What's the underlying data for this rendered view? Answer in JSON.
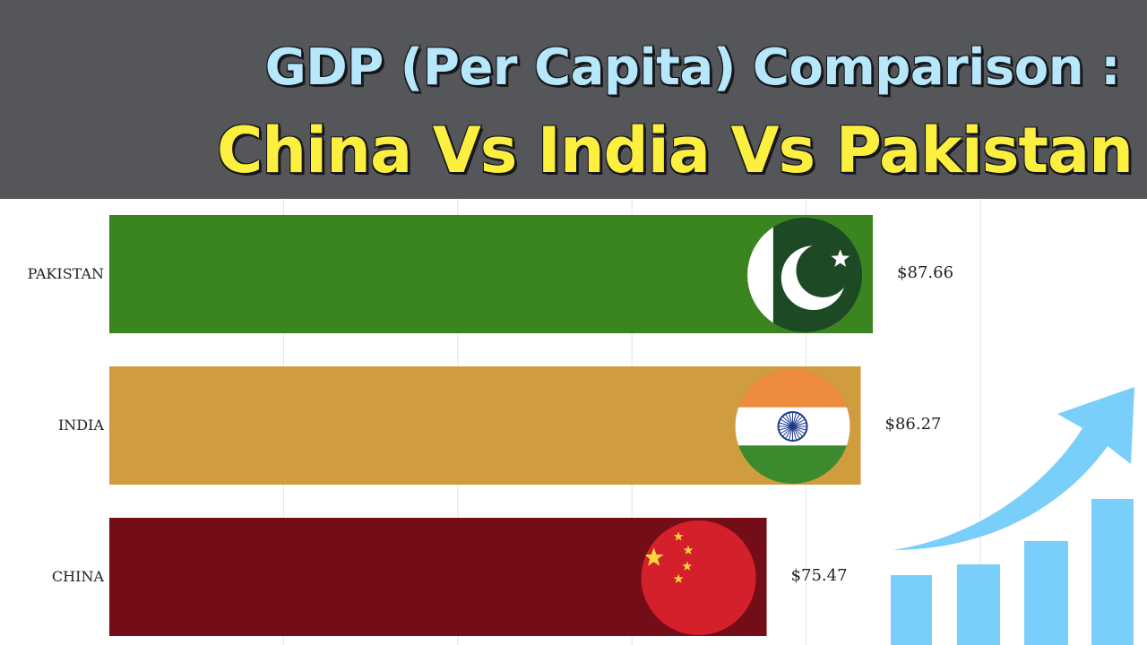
{
  "header": {
    "title_line1": "GDP (Per Capita) Comparison :",
    "title_line2": "China Vs India Vs Pakistan"
  },
  "chart_data": {
    "type": "bar",
    "orientation": "horizontal",
    "categories": [
      "PAKISTAN",
      "INDIA",
      "CHINA"
    ],
    "values": [
      87.66,
      86.27,
      75.47
    ],
    "value_labels": [
      "$87.66",
      "$86.27",
      "$75.47"
    ],
    "bar_colors": [
      "#3b8520",
      "#cf9d3d",
      "#730e18"
    ],
    "flag_icons": [
      "pakistan-flag-icon",
      "india-flag-icon",
      "china-flag-icon"
    ],
    "xlim": [
      0,
      100
    ],
    "grid": true,
    "title": "",
    "xlabel": "",
    "ylabel": ""
  },
  "decoration": {
    "icon": "growth-chart-arrow-icon",
    "color": "#79cffa"
  }
}
